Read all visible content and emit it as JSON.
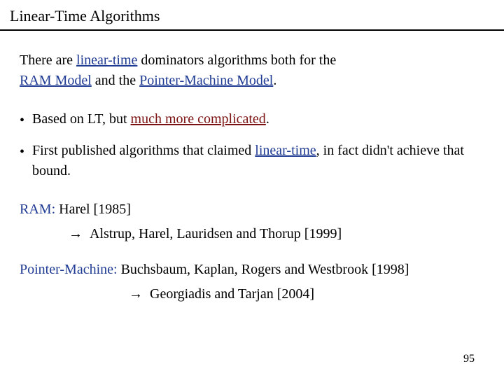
{
  "colors": {
    "blue": "#1f3a93",
    "darkred": "#7b1010",
    "text": "#000000",
    "background": "#ffffff",
    "rule": "#000000"
  },
  "typography": {
    "family": "Georgia, 'Times New Roman', serif",
    "title_fontsize": 22,
    "body_fontsize": 20,
    "pagenum_fontsize": 16
  },
  "title": "Linear-Time Algorithms",
  "intro": {
    "t1": "There are ",
    "t2": "linear-time",
    "t3": " dominators algorithms both for the",
    "t4": "RAM Model",
    "t5": " and the ",
    "t6": "Pointer-Machine Model",
    "t7": "."
  },
  "bullets": {
    "b1a": "Based on  LT, but ",
    "b1b": "much more complicated",
    "b1c": ".",
    "b2a": "First published algorithms that claimed ",
    "b2b": "linear-time",
    "b2c": ", in fact didn't achieve that bound."
  },
  "refs": {
    "ram_label": "RAM:",
    "ram_text": "  Harel [1985]",
    "ram_arrow_text": "Alstrup, Harel, Lauridsen and Thorup  [1999]",
    "pm_label": "Pointer-Machine:",
    "pm_text": "  Buchsbaum, Kaplan, Rogers and Westbrook [1998]",
    "pm_arrow_text": "Georgiadis and Tarjan [2004]"
  },
  "bullet_glyph": "•",
  "arrow_glyph": "→",
  "page_number": "95"
}
